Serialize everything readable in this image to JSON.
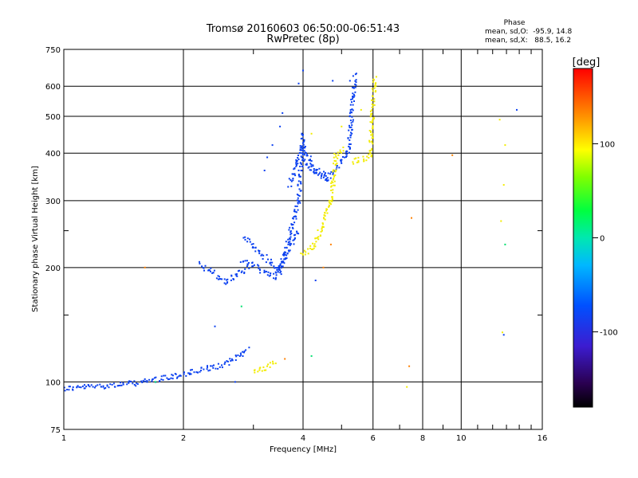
{
  "chart_data": {
    "type": "scatter",
    "title": "Tromsø 20160603 06:50:00-06:51:43",
    "subtitle": "RwPretec (8p)",
    "xlabel": "Frequency [MHz]",
    "ylabel": "Stationary phase Virtual Height [km]",
    "x_scale": "log",
    "y_scale": "log",
    "xlim": [
      1,
      16
    ],
    "ylim": [
      75,
      750
    ],
    "x_ticks": [
      "1",
      "2",
      "4",
      "6",
      "8",
      "10",
      "16"
    ],
    "y_ticks": [
      "75",
      "100",
      "200",
      "300",
      "400",
      "500",
      "600",
      "750"
    ],
    "x_grid": [
      1,
      2,
      4,
      6,
      8,
      10,
      16
    ],
    "y_grid": [
      75,
      100,
      200,
      300,
      400,
      500,
      600,
      750
    ],
    "x_minor_ticks": [
      3,
      5,
      7,
      9,
      11,
      12,
      13,
      14,
      15
    ],
    "y_minor_ticks": [
      150,
      250
    ],
    "stats": {
      "heading": "Phase",
      "line_O": "mean, sd,O:  -95.9, 14.8",
      "line_X": "mean, sd,X:   88.5, 16.2"
    },
    "colorbar": {
      "label": "[deg]",
      "range": [
        -180,
        180
      ],
      "ticks": [
        "100",
        "0",
        "-100"
      ],
      "tick_values": [
        100,
        0,
        -100
      ]
    },
    "series": [
      {
        "mode": "O",
        "phase_deg": -100,
        "segments": [
          {
            "from": [
              1.0,
              96
            ],
            "to": [
              1.5,
              99
            ]
          },
          {
            "from": [
              1.5,
              99
            ],
            "to": [
              1.95,
              104
            ]
          },
          {
            "from": [
              1.95,
              104
            ],
            "to": [
              2.55,
              111
            ]
          },
          {
            "from": [
              2.55,
              111
            ],
            "to": [
              2.9,
              122
            ]
          },
          {
            "from": [
              2.2,
              205
            ],
            "to": [
              2.55,
              183
            ]
          },
          {
            "from": [
              2.55,
              183
            ],
            "to": [
              2.9,
              200
            ]
          },
          {
            "from": [
              2.8,
              210
            ],
            "to": [
              3.4,
              188
            ]
          },
          {
            "from": [
              3.4,
              188
            ],
            "to": [
              3.9,
              250
            ]
          },
          {
            "from": [
              2.85,
              240
            ],
            "to": [
              3.5,
              195
            ]
          },
          {
            "from": [
              3.5,
              195
            ],
            "to": [
              3.9,
              300
            ]
          },
          {
            "from": [
              3.9,
              300
            ],
            "to": [
              4.0,
              450
            ]
          },
          {
            "from": [
              3.7,
              330
            ],
            "to": [
              4.0,
              420
            ]
          },
          {
            "from": [
              4.0,
              380
            ],
            "to": [
              4.6,
              340
            ]
          },
          {
            "from": [
              4.6,
              340
            ],
            "to": [
              5.2,
              400
            ]
          },
          {
            "from": [
              5.2,
              400
            ],
            "to": [
              5.4,
              640
            ]
          },
          {
            "from": [
              4.0,
              420
            ],
            "to": [
              4.3,
              360
            ]
          },
          {
            "from": [
              4.3,
              360
            ],
            "to": [
              4.6,
              350
            ]
          }
        ],
        "points": [
          [
            3.2,
            360
          ],
          [
            3.25,
            390
          ],
          [
            3.35,
            420
          ],
          [
            3.5,
            470
          ],
          [
            3.55,
            510
          ],
          [
            3.9,
            610
          ],
          [
            4.0,
            660
          ],
          [
            4.75,
            620
          ],
          [
            5.25,
            620
          ],
          [
            13.8,
            520
          ],
          [
            2.7,
            100
          ],
          [
            4.3,
            185
          ],
          [
            2.4,
            140
          ],
          [
            12.8,
            133
          ]
        ]
      },
      {
        "mode": "X",
        "phase_deg": 90,
        "segments": [
          {
            "from": [
              3.0,
              106
            ],
            "to": [
              3.4,
              112
            ]
          },
          {
            "from": [
              3.95,
              215
            ],
            "to": [
              4.3,
              230
            ]
          },
          {
            "from": [
              4.3,
              230
            ],
            "to": [
              4.7,
              300
            ]
          },
          {
            "from": [
              4.7,
              300
            ],
            "to": [
              4.85,
              390
            ]
          },
          {
            "from": [
              4.8,
              390
            ],
            "to": [
              5.1,
              410
            ]
          },
          {
            "from": [
              5.3,
              380
            ],
            "to": [
              5.9,
              390
            ]
          },
          {
            "from": [
              5.9,
              390
            ],
            "to": [
              6.05,
              630
            ]
          }
        ],
        "points": [
          [
            4.2,
            450
          ],
          [
            5.0,
            470
          ],
          [
            5.6,
            520
          ],
          [
            12.5,
            490
          ],
          [
            12.9,
            420
          ],
          [
            12.8,
            330
          ],
          [
            12.6,
            265
          ],
          [
            12.7,
            135
          ],
          [
            7.3,
            97
          ]
        ]
      },
      {
        "mode": "noise",
        "phase_deg": 150,
        "points": [
          [
            7.5,
            270
          ],
          [
            9.5,
            395
          ],
          [
            7.4,
            110
          ],
          [
            4.5,
            200
          ],
          [
            4.7,
            230
          ],
          [
            1.6,
            200
          ],
          [
            3.6,
            115
          ]
        ]
      },
      {
        "mode": "noise",
        "phase_deg": 0,
        "points": [
          [
            2.8,
            158
          ],
          [
            4.2,
            117
          ],
          [
            1.7,
            100
          ],
          [
            12.9,
            230
          ]
        ]
      }
    ]
  }
}
